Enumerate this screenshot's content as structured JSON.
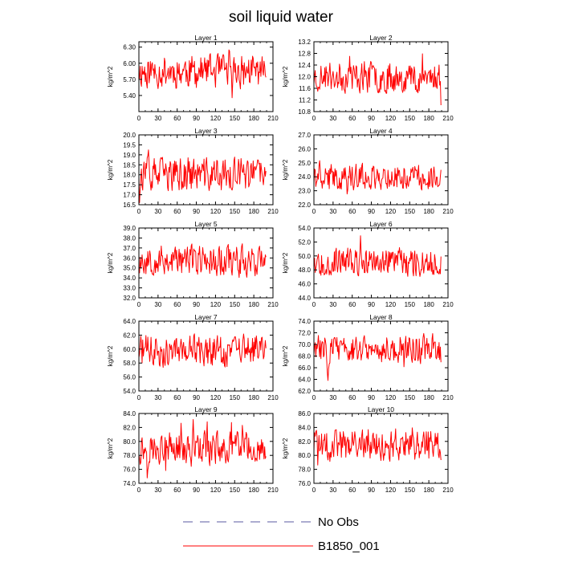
{
  "chart_data": {
    "type": "line",
    "title": "soil liquid water",
    "x": {
      "min": 0,
      "max": 210,
      "ticks": [
        0,
        30,
        60,
        90,
        120,
        150,
        180,
        210
      ]
    },
    "n_points": 200,
    "panels": [
      {
        "title": "Layer 1",
        "ylabel": "kg/m^2",
        "ylim": [
          5.1,
          6.4
        ],
        "yticks": [
          "5.40",
          "5.70",
          "6.00",
          "6.30"
        ],
        "mean": 5.85,
        "amp": 0.22,
        "seed": 11,
        "series": [
          {
            "name": "B1850_001"
          }
        ]
      },
      {
        "title": "Layer 2",
        "ylabel": "kg/m^2",
        "ylim": [
          10.8,
          13.2
        ],
        "yticks": [
          "10.8",
          "11.2",
          "11.6",
          "12.0",
          "12.4",
          "12.8",
          "13.2"
        ],
        "mean": 12.0,
        "amp": 0.38,
        "seed": 23,
        "series": [
          {
            "name": "B1850_001"
          }
        ]
      },
      {
        "title": "Layer 3",
        "ylabel": "kg/m^2",
        "ylim": [
          16.5,
          20.0
        ],
        "yticks": [
          "16.5",
          "17.0",
          "17.5",
          "18.0",
          "18.5",
          "19.0",
          "19.5",
          "20.0"
        ],
        "mean": 18.0,
        "amp": 0.6,
        "seed": 37,
        "series": [
          {
            "name": "B1850_001"
          }
        ]
      },
      {
        "title": "Layer 4",
        "ylabel": "kg/m^2",
        "ylim": [
          22.0,
          27.0
        ],
        "yticks": [
          "22.0",
          "23.0",
          "24.0",
          "25.0",
          "26.0",
          "27.0"
        ],
        "mean": 24.0,
        "amp": 0.65,
        "seed": 41,
        "series": [
          {
            "name": "B1850_001"
          }
        ]
      },
      {
        "title": "Layer 5",
        "ylabel": "kg/m^2",
        "ylim": [
          32.0,
          39.0
        ],
        "yticks": [
          "32.0",
          "33.0",
          "34.0",
          "35.0",
          "36.0",
          "37.0",
          "38.0",
          "39.0"
        ],
        "mean": 35.8,
        "amp": 1.1,
        "seed": 53,
        "series": [
          {
            "name": "B1850_001"
          }
        ]
      },
      {
        "title": "Layer 6",
        "ylabel": "kg/m^2",
        "ylim": [
          44.0,
          54.0
        ],
        "yticks": [
          "44.0",
          "46.0",
          "48.0",
          "50.0",
          "52.0",
          "54.0"
        ],
        "mean": 49.2,
        "amp": 1.4,
        "seed": 67,
        "series": [
          {
            "name": "B1850_001"
          }
        ]
      },
      {
        "title": "Layer 7",
        "ylabel": "kg/m^2",
        "ylim": [
          54.0,
          64.0
        ],
        "yticks": [
          "54.0",
          "56.0",
          "58.0",
          "60.0",
          "62.0",
          "64.0"
        ],
        "mean": 59.8,
        "amp": 1.6,
        "seed": 71,
        "series": [
          {
            "name": "B1850_001"
          }
        ]
      },
      {
        "title": "Layer 8",
        "ylabel": "kg/m^2",
        "ylim": [
          62.0,
          74.0
        ],
        "yticks": [
          "62.0",
          "64.0",
          "66.0",
          "68.0",
          "70.0",
          "72.0",
          "74.0"
        ],
        "mean": 69.3,
        "amp": 1.7,
        "seed": 83,
        "series": [
          {
            "name": "B1850_001"
          }
        ]
      },
      {
        "title": "Layer 9",
        "ylabel": "kg/m^2",
        "ylim": [
          74.0,
          84.0
        ],
        "yticks": [
          "74.0",
          "76.0",
          "78.0",
          "80.0",
          "82.0",
          "84.0"
        ],
        "mean": 79.0,
        "amp": 1.6,
        "seed": 97,
        "series": [
          {
            "name": "B1850_001"
          }
        ]
      },
      {
        "title": "Layer 10",
        "ylabel": "kg/m^2",
        "ylim": [
          76.0,
          86.0
        ],
        "yticks": [
          "76.0",
          "78.0",
          "80.0",
          "82.0",
          "84.0",
          "86.0"
        ],
        "mean": 81.5,
        "amp": 1.6,
        "seed": 101,
        "series": [
          {
            "name": "B1850_001"
          }
        ]
      }
    ],
    "legend": [
      {
        "label": "No Obs",
        "style": "dashed",
        "color": "#5a5aa0"
      },
      {
        "label": "B1850_001",
        "style": "solid",
        "color": "#ff0000"
      }
    ],
    "colors": {
      "series": "#ff0000",
      "obs": "#5a5aa0"
    }
  }
}
